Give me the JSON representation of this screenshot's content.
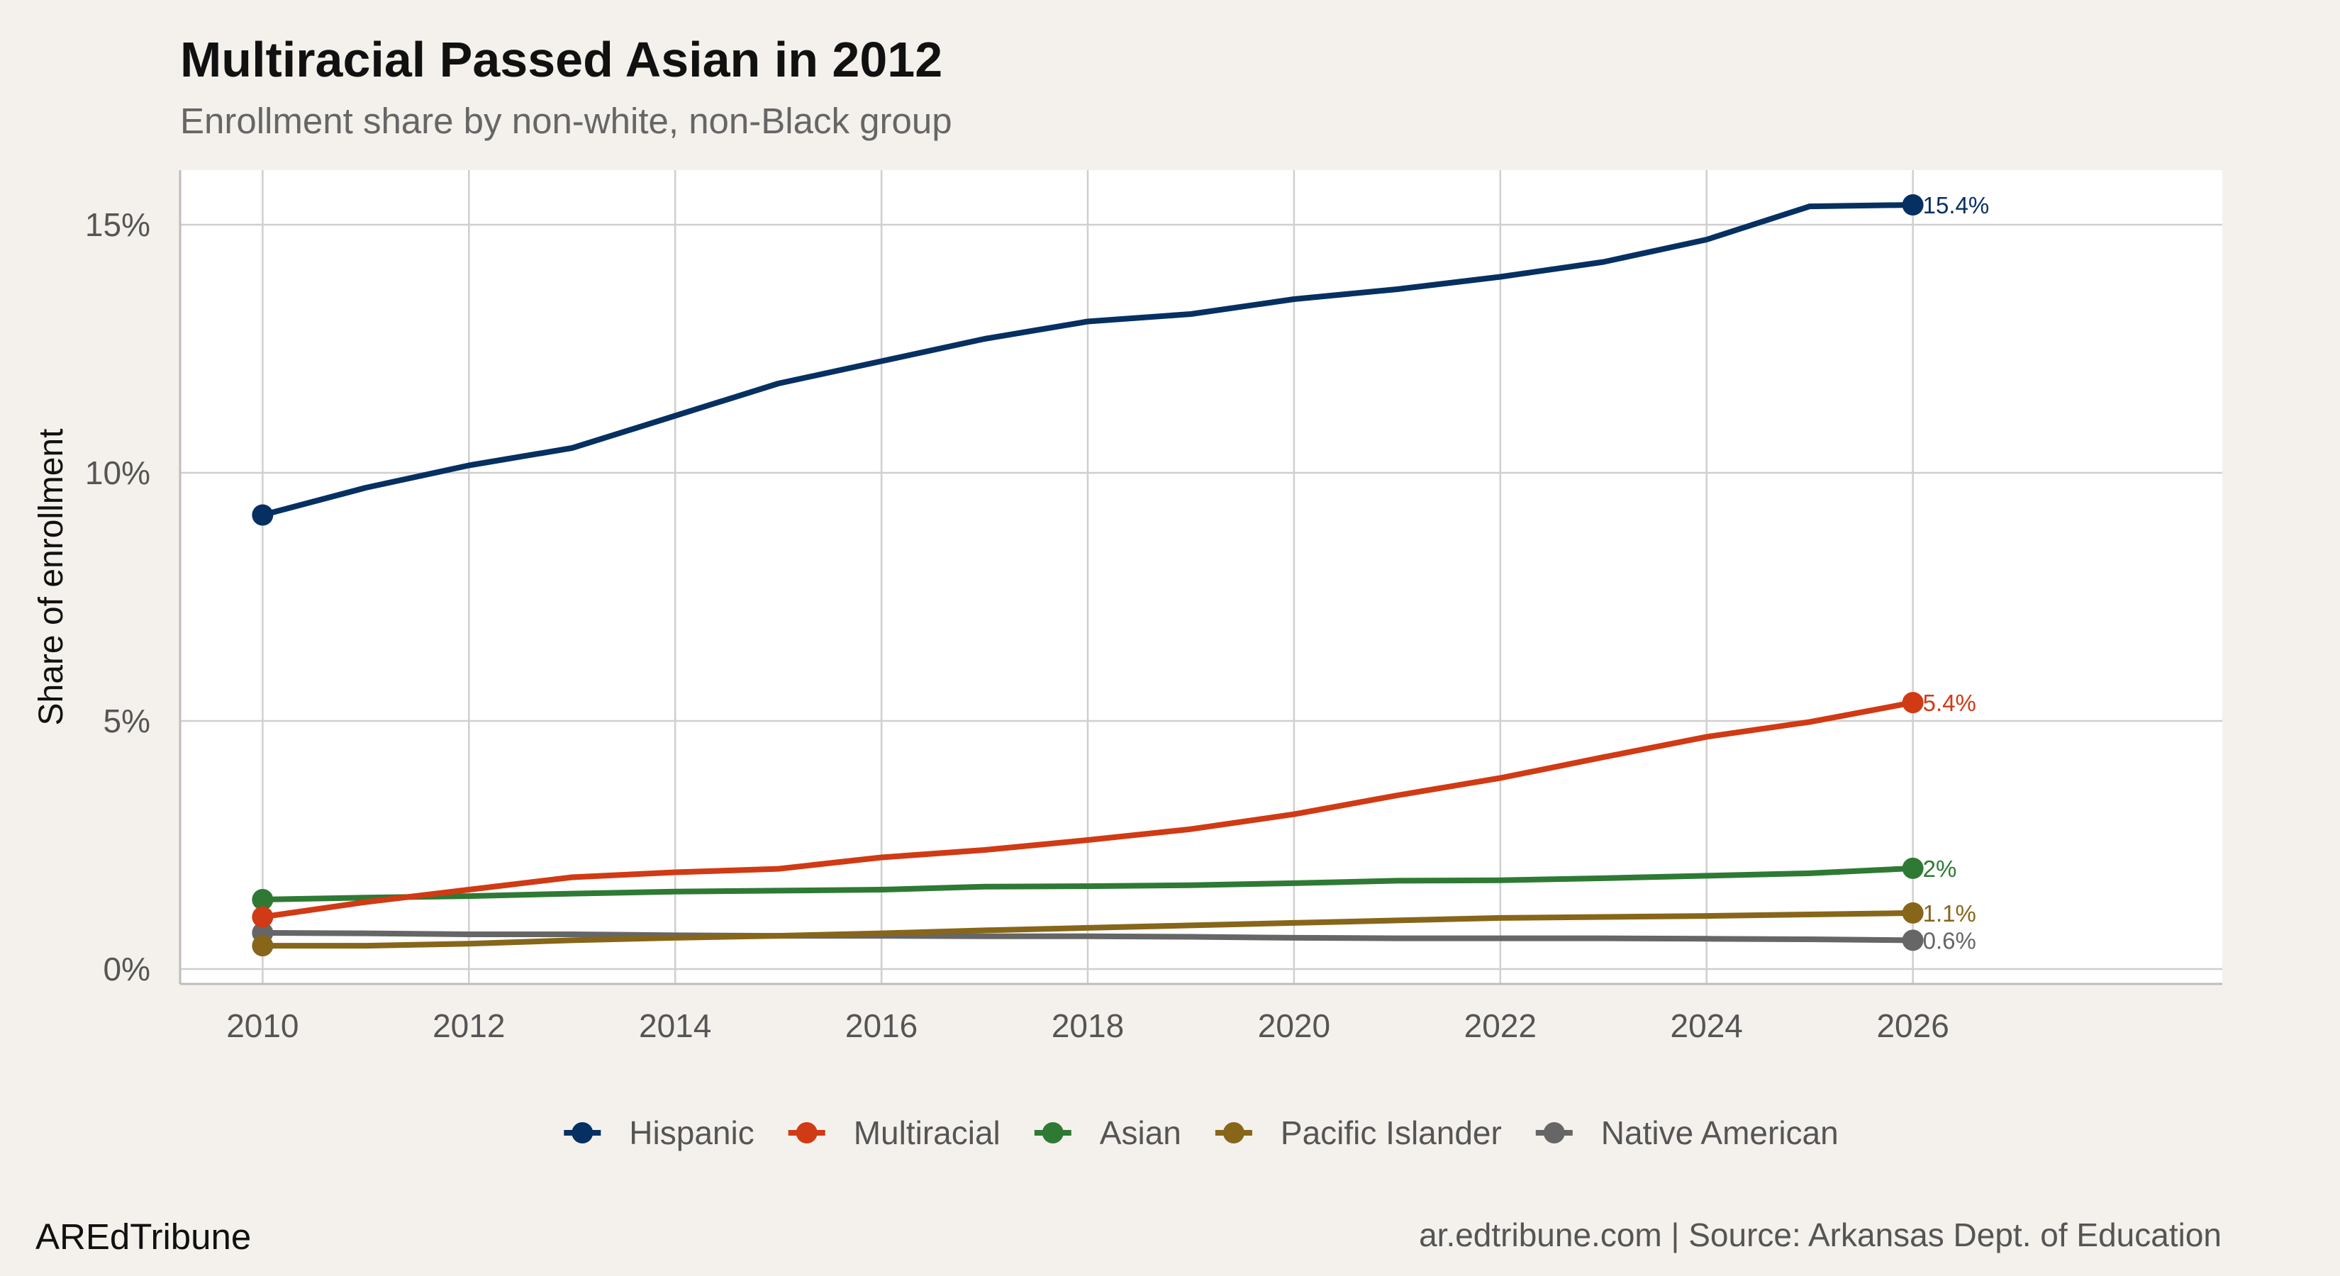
{
  "chart_data": {
    "type": "line",
    "title": "Multiracial Passed Asian in 2012",
    "subtitle": "Enrollment share by non-white, non-Black group",
    "xlabel": "",
    "ylabel": "Share of enrollment",
    "xlim": [
      2009.2,
      2029
    ],
    "ylim": [
      -0.3,
      16.1
    ],
    "x_ticks": [
      2010,
      2012,
      2014,
      2016,
      2018,
      2020,
      2022,
      2024,
      2026
    ],
    "y_ticks": [
      0,
      5,
      10,
      15
    ],
    "y_tick_labels": [
      "0%",
      "5%",
      "10%",
      "15%"
    ],
    "x": [
      2010,
      2011,
      2012,
      2013,
      2014,
      2015,
      2016,
      2017,
      2018,
      2019,
      2020,
      2021,
      2022,
      2023,
      2024,
      2025,
      2026
    ],
    "series": [
      {
        "name": "Hispanic",
        "color": "#053061",
        "end_label": "15.4%",
        "values": [
          9.15,
          9.7,
          10.15,
          10.5,
          11.15,
          11.8,
          12.25,
          12.7,
          13.05,
          13.2,
          13.5,
          13.7,
          13.95,
          14.25,
          14.7,
          15.37,
          15.4
        ]
      },
      {
        "name": "Multiracial",
        "color": "#d03a14",
        "end_label": "5.4%",
        "values": [
          1.05,
          1.35,
          1.6,
          1.85,
          1.95,
          2.02,
          2.25,
          2.4,
          2.6,
          2.82,
          3.12,
          3.5,
          3.85,
          4.27,
          4.68,
          4.98,
          5.37
        ]
      },
      {
        "name": "Asian",
        "color": "#2e7a34",
        "end_label": "2%",
        "values": [
          1.4,
          1.44,
          1.47,
          1.52,
          1.56,
          1.58,
          1.6,
          1.66,
          1.67,
          1.69,
          1.73,
          1.78,
          1.79,
          1.83,
          1.88,
          1.93,
          2.03
        ]
      },
      {
        "name": "Pacific Islander",
        "color": "#87661a",
        "end_label": "1.1%",
        "values": [
          0.47,
          0.47,
          0.51,
          0.58,
          0.63,
          0.67,
          0.72,
          0.78,
          0.83,
          0.88,
          0.93,
          0.98,
          1.03,
          1.05,
          1.07,
          1.1,
          1.13
        ]
      },
      {
        "name": "Native American",
        "color": "#666666",
        "end_label": "0.6%",
        "values": [
          0.73,
          0.72,
          0.7,
          0.7,
          0.68,
          0.67,
          0.67,
          0.66,
          0.66,
          0.65,
          0.63,
          0.62,
          0.62,
          0.62,
          0.61,
          0.6,
          0.58
        ]
      }
    ],
    "legend_position": "bottom"
  },
  "footer": {
    "brand": "AREdTribune",
    "source": "ar.edtribune.com | Source: Arkansas Dept. of Education"
  }
}
